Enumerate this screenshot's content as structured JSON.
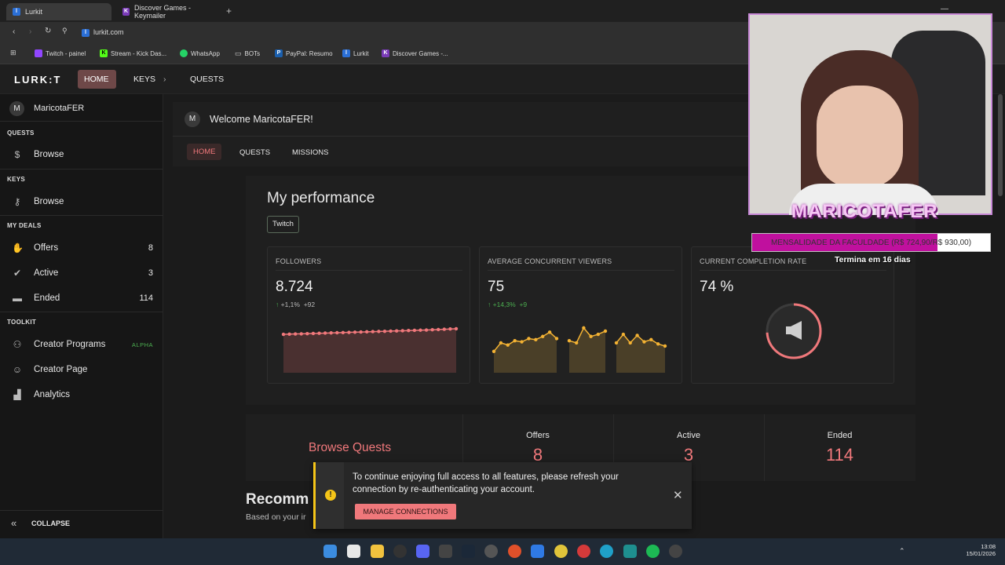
{
  "browser": {
    "tabs": [
      {
        "title": "Lurkit",
        "active": true
      },
      {
        "title": "Discover Games - Keymailer",
        "active": false
      }
    ],
    "url": "lurkit.com",
    "bookmarks": [
      "Twitch - painel",
      "Stream - Kick Das...",
      "WhatsApp",
      "BOTs",
      "PayPal: Resumo",
      "Lurkit",
      "Discover Games -..."
    ]
  },
  "app": {
    "logo": "LURK:T",
    "nav": {
      "home": "HOME",
      "keys": "KEYS",
      "quests": "QUESTS"
    },
    "user": {
      "initial": "M",
      "name": "MaricotaFER"
    },
    "sidebar": {
      "quests_header": "QUESTS",
      "quests_browse": "Browse",
      "keys_header": "KEYS",
      "keys_browse": "Browse",
      "deals_header": "MY DEALS",
      "offers": {
        "label": "Offers",
        "count": "8"
      },
      "active": {
        "label": "Active",
        "count": "3"
      },
      "ended": {
        "label": "Ended",
        "count": "114"
      },
      "toolkit_header": "TOOLKIT",
      "creator_programs": {
        "label": "Creator Programs",
        "badge": "ALPHA"
      },
      "creator_page": "Creator Page",
      "analytics": "Analytics",
      "collapse": "COLLAPSE"
    },
    "welcome": "Welcome MaricotaFER!",
    "subtabs": {
      "home": "HOME",
      "quests": "QUESTS",
      "missions": "MISSIONS"
    },
    "performance": {
      "title": "My performance",
      "platform": "Twitch",
      "followers": {
        "title": "FOLLOWERS",
        "value": "8.724",
        "pct": "+1,1%",
        "abs": "+92"
      },
      "viewers": {
        "title": "AVERAGE CONCURRENT VIEWERS",
        "value": "75",
        "pct": "+14,3%",
        "abs": "+9"
      },
      "completion": {
        "title": "CURRENT COMPLETION RATE",
        "value": "74 %",
        "rate": 0.74
      }
    },
    "stats": {
      "browse_quests": "Browse Quests",
      "offers": {
        "label": "Offers",
        "value": "8"
      },
      "active": {
        "label": "Active",
        "value": "3"
      },
      "ended": {
        "label": "Ended",
        "value": "114"
      }
    },
    "recommended": {
      "title": "Recomm",
      "sub": "Based on your ir"
    },
    "toast": {
      "message_line1": "To continue enjoying full access to all features, please refresh your",
      "message_line2": "connection by re-authenticating your account.",
      "button": "MANAGE CONNECTIONS"
    }
  },
  "overlay": {
    "streamer_name": "MARICOTAFER",
    "goal_text": "MENSALIDADE DA FACULDADE (R$ 724,90/R$ 930,00)",
    "goal_progress": 0.78,
    "ends_text": "Termina em 16 dias"
  },
  "taskbar": {
    "time": "13:08",
    "date": "15/01/2026"
  },
  "colors": {
    "accent": "#f0787b",
    "brand_red": "#e35b5b",
    "chart_gold": "#f3b233",
    "toast_yellow": "#f5c518"
  },
  "chart_data": [
    {
      "type": "area",
      "title": "FOLLOWERS",
      "x": [
        1,
        2,
        3,
        4,
        5,
        6,
        7,
        8,
        9,
        10,
        11,
        12,
        13,
        14,
        15,
        16,
        17,
        18,
        19,
        20,
        21,
        22,
        23,
        24,
        25,
        26,
        27,
        28,
        29,
        30
      ],
      "values": [
        8632,
        8635,
        8638,
        8640,
        8643,
        8646,
        8649,
        8652,
        8655,
        8658,
        8661,
        8664,
        8667,
        8670,
        8673,
        8676,
        8679,
        8682,
        8685,
        8688,
        8691,
        8694,
        8697,
        8700,
        8703,
        8707,
        8711,
        8715,
        8720,
        8724
      ]
    },
    {
      "type": "area",
      "title": "AVERAGE CONCURRENT VIEWERS",
      "segments": [
        {
          "values": [
            60,
            68,
            66,
            70,
            69,
            72,
            71,
            74,
            78,
            72
          ]
        },
        {
          "values": [
            70,
            68,
            82,
            74,
            76,
            79
          ]
        },
        {
          "values": [
            68,
            76,
            68,
            75,
            69,
            71,
            67,
            65
          ]
        }
      ]
    }
  ]
}
